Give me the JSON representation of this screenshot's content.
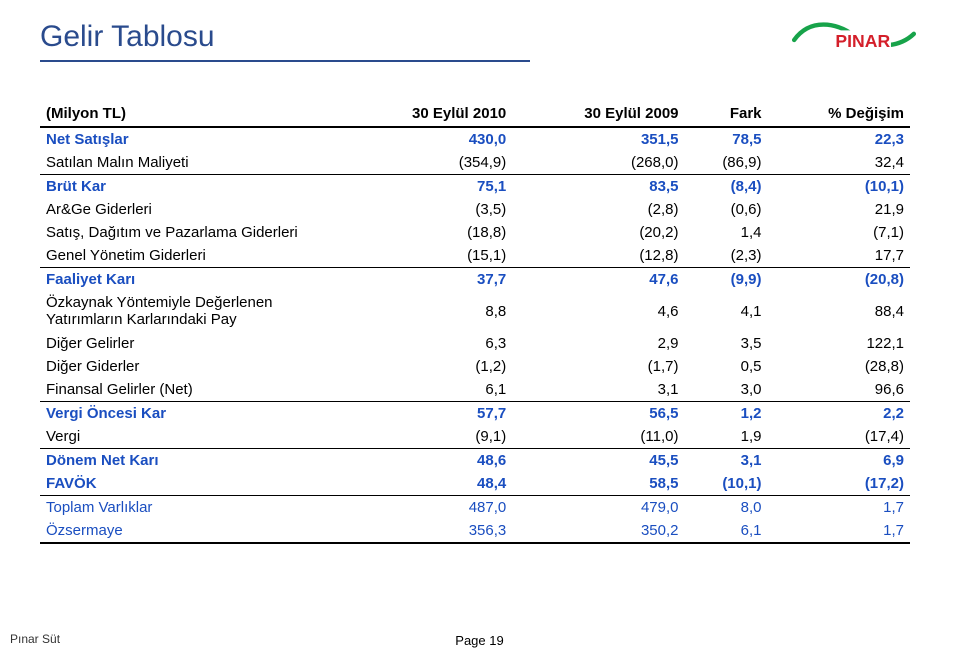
{
  "title": "Gelir Tablosu",
  "logo": {
    "text": "PINAR",
    "green": "#17a34a",
    "red": "#d41f2a"
  },
  "footer": {
    "left": "Pınar Süt",
    "center": "Page 19"
  },
  "colors": {
    "brand_blue": "#2a4b8d",
    "row_blue": "#1a4ec0"
  },
  "table": {
    "headers": [
      "(Milyon TL)",
      "30 Eylül 2010",
      "30 Eylül 2009",
      "Fark",
      "% Değişim"
    ],
    "rows": [
      {
        "style": "bold blue sepTop",
        "cells": [
          "Net Satışlar",
          "430,0",
          "351,5",
          "78,5",
          "22,3"
        ]
      },
      {
        "style": "normal",
        "cells": [
          "Satılan Malın Maliyeti",
          "(354,9)",
          "(268,0)",
          "(86,9)",
          "32,4"
        ]
      },
      {
        "style": "bold blue sepTop",
        "cells": [
          "Brüt Kar",
          "75,1",
          "83,5",
          "(8,4)",
          "(10,1)"
        ]
      },
      {
        "style": "normal",
        "cells": [
          "Ar&Ge Giderleri",
          "(3,5)",
          "(2,8)",
          "(0,6)",
          "21,9"
        ]
      },
      {
        "style": "normal",
        "cells": [
          "Satış, Dağıtım ve Pazarlama Giderleri",
          "(18,8)",
          "(20,2)",
          "1,4",
          "(7,1)"
        ]
      },
      {
        "style": "normal",
        "cells": [
          "Genel Yönetim Giderleri",
          "(15,1)",
          "(12,8)",
          "(2,3)",
          "17,7"
        ]
      },
      {
        "style": "bold blue sepTop",
        "cells": [
          "Faaliyet Karı",
          "37,7",
          "47,6",
          "(9,9)",
          "(20,8)"
        ]
      },
      {
        "style": "normal multiline",
        "cells": [
          "Özkaynak Yöntemiyle Değerlenen\nYatırımların Karlarındaki Pay",
          "8,8",
          "4,6",
          "4,1",
          "88,4"
        ]
      },
      {
        "style": "normal",
        "cells": [
          "Diğer Gelirler",
          "6,3",
          "2,9",
          "3,5",
          "122,1"
        ]
      },
      {
        "style": "normal",
        "cells": [
          "Diğer Giderler",
          "(1,2)",
          "(1,7)",
          "0,5",
          "(28,8)"
        ]
      },
      {
        "style": "normal",
        "cells": [
          "Finansal Gelirler (Net)",
          "6,1",
          "3,1",
          "3,0",
          "96,6"
        ]
      },
      {
        "style": "bold blue sepTop",
        "cells": [
          "Vergi Öncesi Kar",
          "57,7",
          "56,5",
          "1,2",
          "2,2"
        ]
      },
      {
        "style": "normal",
        "cells": [
          "Vergi",
          "(9,1)",
          "(11,0)",
          "1,9",
          "(17,4)"
        ]
      },
      {
        "style": "bold blue sepTop",
        "cells": [
          "Dönem Net Karı",
          "48,6",
          "45,5",
          "3,1",
          "6,9"
        ]
      },
      {
        "style": "bold blue sepBot",
        "cells": [
          "FAVÖK",
          "48,4",
          "58,5",
          "(10,1)",
          "(17,2)"
        ]
      },
      {
        "style": "normal blue",
        "cells": [
          "Toplam Varlıklar",
          "487,0",
          "479,0",
          "8,0",
          "1,7"
        ]
      },
      {
        "style": "normal blue lastThick",
        "cells": [
          "Özsermaye",
          "356,3",
          "350,2",
          "6,1",
          "1,7"
        ]
      }
    ]
  }
}
